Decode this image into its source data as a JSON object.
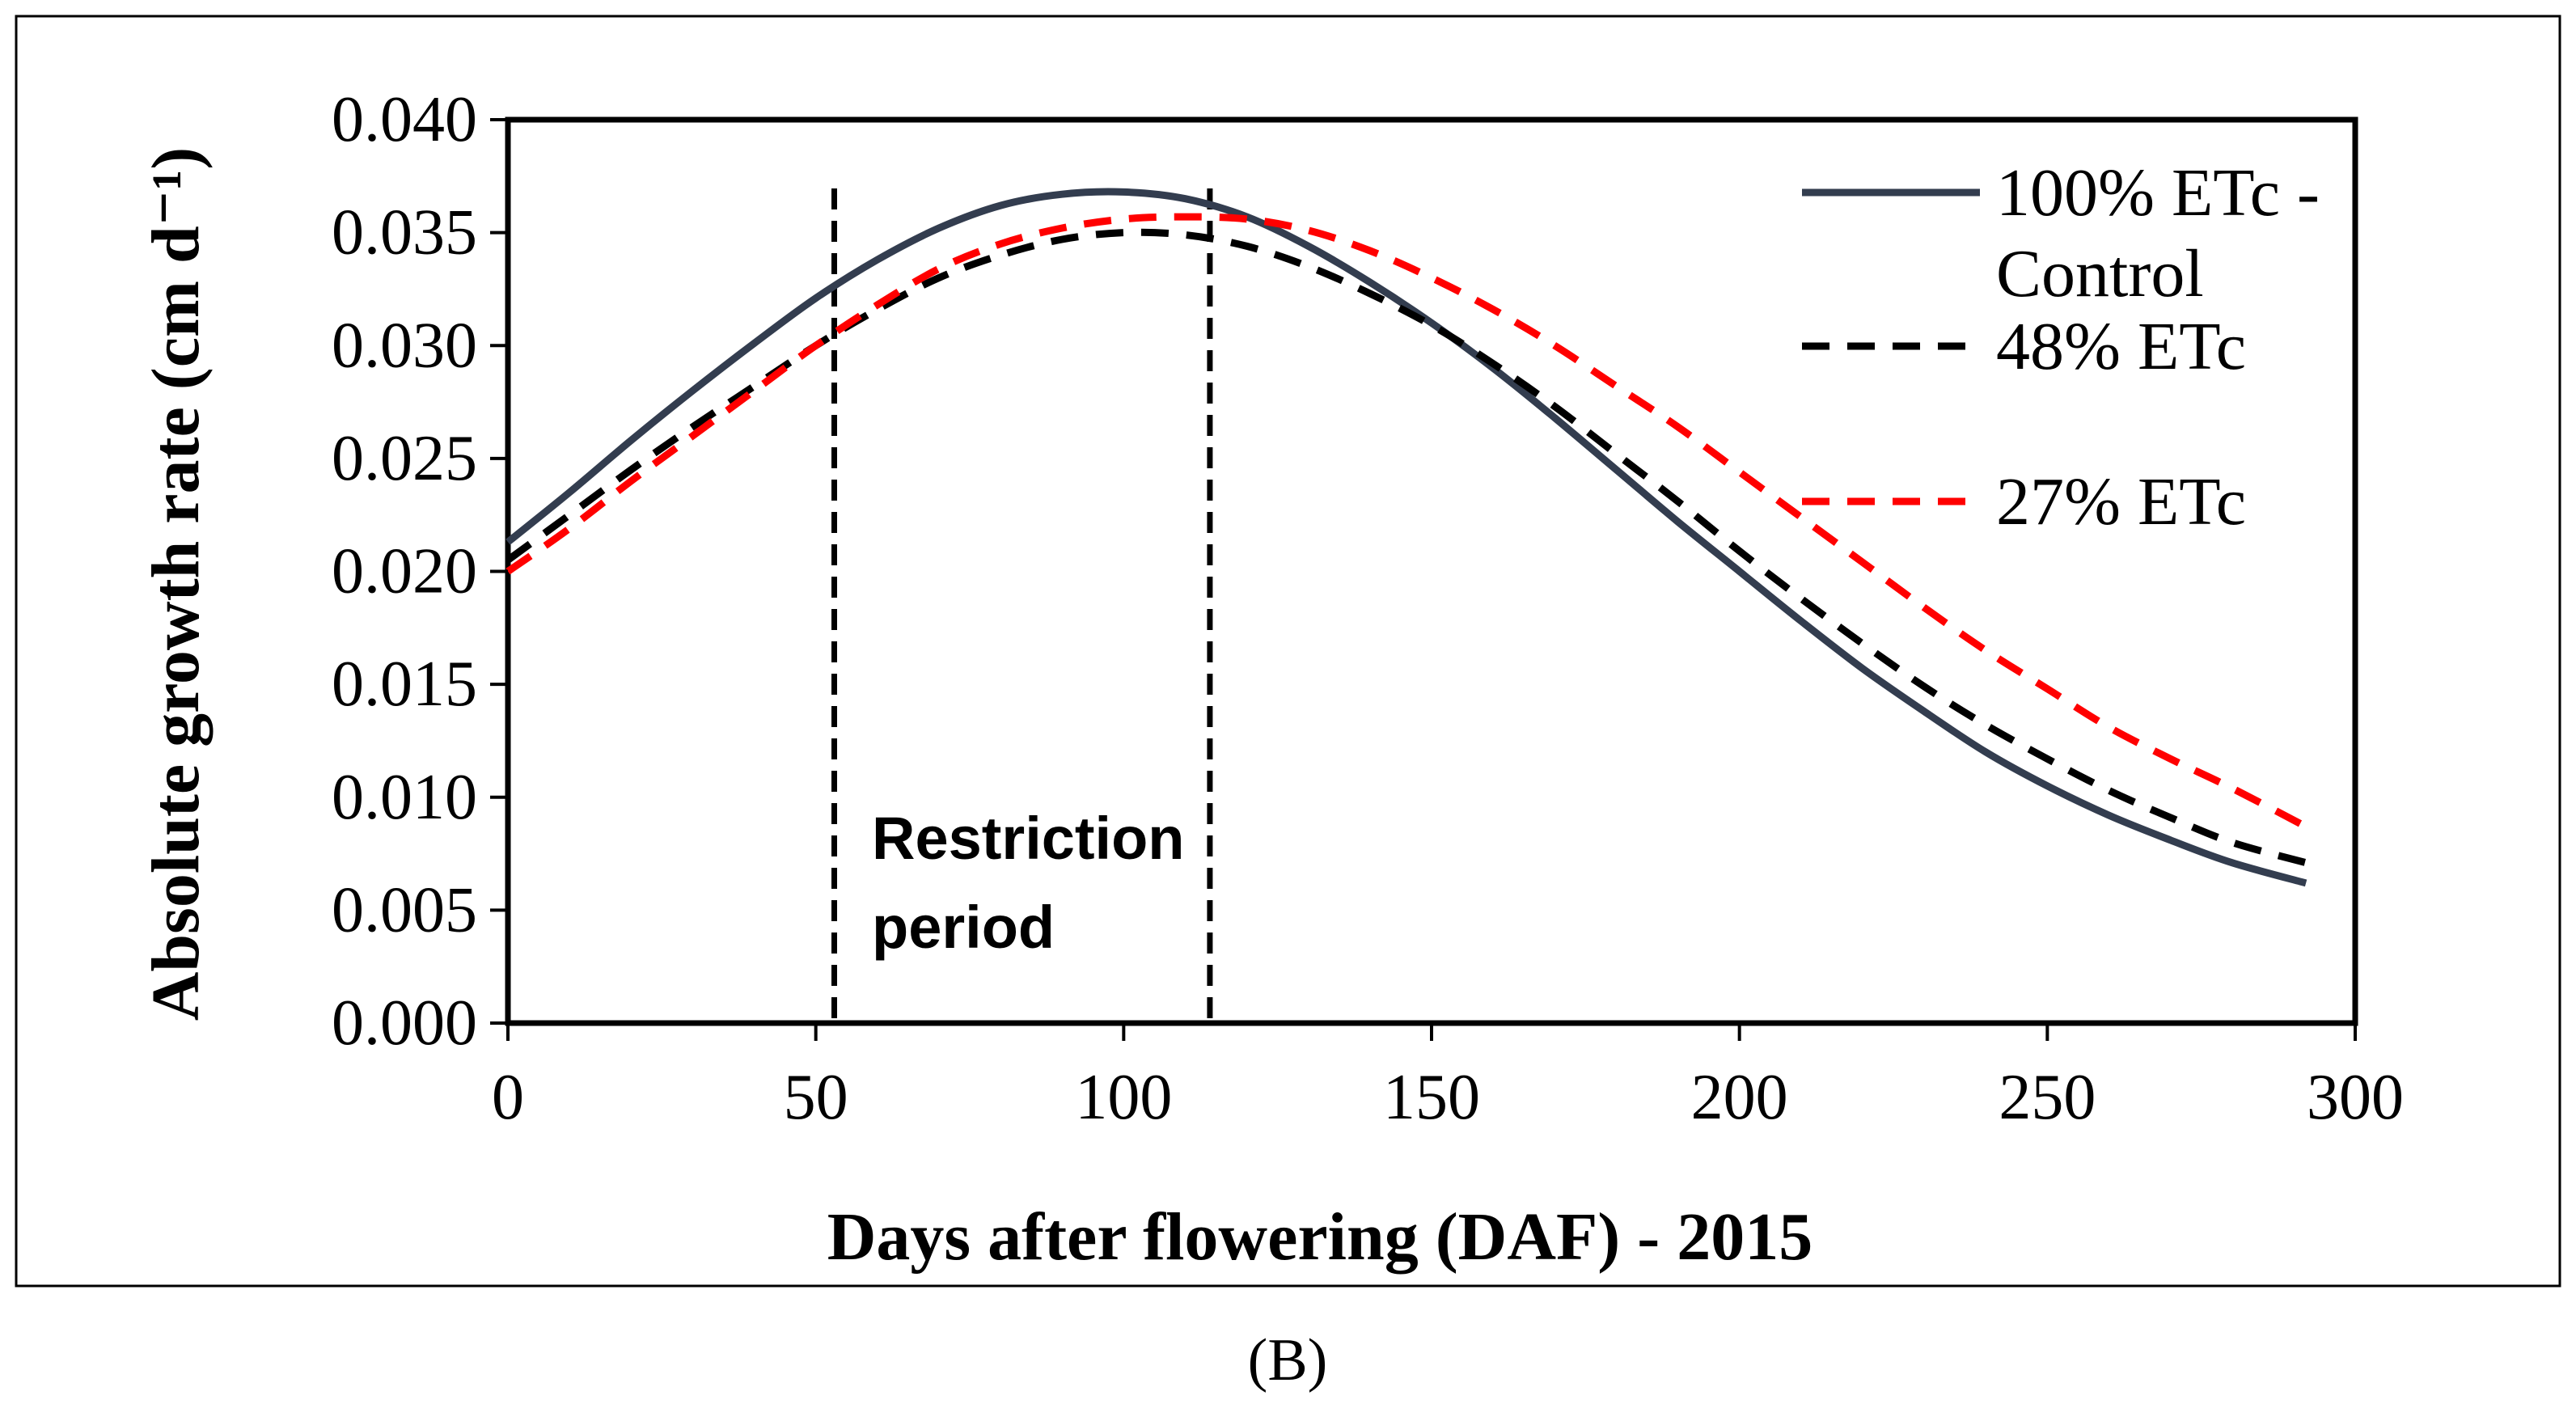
{
  "chart_data": {
    "type": "line",
    "title": "",
    "panel_label": "(B)",
    "xlabel": "Days after flowering (DAF) - 2015",
    "ylabel": "Absolute growth rate (cm d⁻¹)",
    "xlim": [
      0,
      300
    ],
    "ylim": [
      0.0,
      0.04
    ],
    "xticks": [
      0,
      50,
      100,
      150,
      200,
      250,
      300
    ],
    "xtick_labels": [
      "0",
      "50",
      "100",
      "150",
      "200",
      "250",
      "300"
    ],
    "yticks": [
      0.0,
      0.005,
      0.01,
      0.015,
      0.02,
      0.025,
      0.03,
      0.035,
      0.04
    ],
    "ytick_labels": [
      "0.000",
      "0.005",
      "0.010",
      "0.015",
      "0.020",
      "0.025",
      "0.030",
      "0.035",
      "0.040"
    ],
    "grid": false,
    "legend_position": "top-right",
    "x": [
      0,
      10,
      20,
      30,
      40,
      50,
      60,
      70,
      80,
      90,
      100,
      110,
      120,
      130,
      140,
      150,
      160,
      170,
      180,
      190,
      200,
      210,
      220,
      230,
      240,
      250,
      260,
      270,
      280,
      292
    ],
    "series": [
      {
        "name": "100% ETc - Control",
        "legend_line1": "100% ETc -",
        "legend_line2": "Control",
        "color": "#333d4f",
        "style": "solid",
        "values": [
          0.0213,
          0.0235,
          0.0258,
          0.028,
          0.0301,
          0.0321,
          0.0338,
          0.0352,
          0.0362,
          0.0367,
          0.0368,
          0.0365,
          0.0357,
          0.0344,
          0.0328,
          0.031,
          0.029,
          0.0268,
          0.0245,
          0.0222,
          0.02,
          0.0178,
          0.0157,
          0.0138,
          0.012,
          0.0105,
          0.0092,
          0.0081,
          0.0071,
          0.0062
        ]
      },
      {
        "name": "48% ETc",
        "legend_line1": "48% ETc",
        "legend_line2": "",
        "color": "#000000",
        "style": "dashed",
        "values": [
          0.0205,
          0.0225,
          0.0245,
          0.0264,
          0.0282,
          0.03,
          0.0316,
          0.033,
          0.034,
          0.0347,
          0.035,
          0.0349,
          0.0344,
          0.0335,
          0.0323,
          0.0309,
          0.0292,
          0.0273,
          0.0252,
          0.0231,
          0.0209,
          0.0188,
          0.0168,
          0.0149,
          0.0132,
          0.0117,
          0.0103,
          0.0091,
          0.008,
          0.0071
        ]
      },
      {
        "name": "27% ETc",
        "legend_line1": "27% ETc",
        "legend_line2": "",
        "color": "#ff0000",
        "style": "dashed",
        "values": [
          0.02,
          0.0219,
          0.024,
          0.026,
          0.028,
          0.03,
          0.0318,
          0.0334,
          0.0345,
          0.0352,
          0.0356,
          0.0357,
          0.0356,
          0.0351,
          0.0342,
          0.033,
          0.0316,
          0.03,
          0.0282,
          0.0264,
          0.0244,
          0.0224,
          0.0204,
          0.0184,
          0.0165,
          0.0148,
          0.0131,
          0.0117,
          0.0104,
          0.0087
        ]
      }
    ],
    "annotations": {
      "restriction_start": 53,
      "restriction_end": 114,
      "restriction_line1": "Restriction",
      "restriction_line2": "period"
    }
  }
}
